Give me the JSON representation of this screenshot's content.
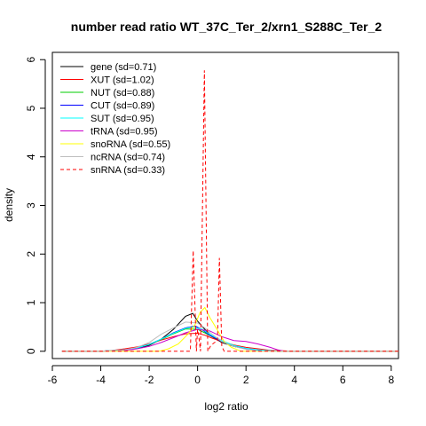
{
  "chart_data": {
    "type": "line",
    "title": "number read ratio WT_37C_Ter_2/xrn1_S288C_Ter_2",
    "xlabel": "log2 ratio",
    "ylabel": "density",
    "xlim": [
      -6,
      8.3
    ],
    "ylim": [
      -0.15,
      6.15
    ],
    "xticks": [
      -6,
      -4,
      -2,
      0,
      2,
      4,
      6,
      8
    ],
    "yticks": [
      0,
      1,
      2,
      3,
      4,
      5,
      6
    ],
    "grid": false,
    "legend_position": "top-left",
    "series": [
      {
        "name": "gene (sd=0.71)",
        "color": "#000000",
        "dash": false,
        "x": [
          -5.6,
          -4,
          -3.5,
          -3,
          -2.5,
          -2,
          -1.5,
          -1,
          -0.5,
          -0.2,
          0,
          0.3,
          0.6,
          1,
          1.5,
          2,
          2.5,
          3,
          3.5,
          4,
          8.3
        ],
        "y": [
          0,
          0,
          0.01,
          0.03,
          0.06,
          0.12,
          0.25,
          0.45,
          0.72,
          0.78,
          0.62,
          0.45,
          0.3,
          0.18,
          0.1,
          0.05,
          0.02,
          0.01,
          0.005,
          0,
          0
        ]
      },
      {
        "name": "XUT (sd=1.02)",
        "color": "#ff0000",
        "dash": false,
        "x": [
          -5.6,
          -4,
          -3.5,
          -3,
          -2.5,
          -2,
          -1.5,
          -1,
          -0.5,
          0,
          0.3,
          0.6,
          1,
          1.5,
          2,
          2.5,
          3,
          3.5,
          4,
          8.3
        ],
        "y": [
          0,
          0,
          0.02,
          0.05,
          0.09,
          0.15,
          0.23,
          0.3,
          0.36,
          0.37,
          0.33,
          0.27,
          0.2,
          0.13,
          0.08,
          0.05,
          0.02,
          0.01,
          0,
          0
        ]
      },
      {
        "name": "NUT (sd=0.88)",
        "color": "#00cc00",
        "dash": false,
        "x": [
          -5.6,
          -4,
          -3,
          -2.5,
          -2,
          -1.5,
          -1,
          -0.5,
          0,
          0.3,
          0.6,
          1,
          1.5,
          2,
          2.5,
          3,
          3.5,
          8.3
        ],
        "y": [
          0,
          0,
          0.03,
          0.07,
          0.14,
          0.24,
          0.36,
          0.46,
          0.45,
          0.38,
          0.3,
          0.2,
          0.1,
          0.05,
          0.02,
          0.01,
          0,
          0
        ]
      },
      {
        "name": "CUT (sd=0.89)",
        "color": "#0000ff",
        "dash": false,
        "x": [
          -5.6,
          -4,
          -3,
          -2.5,
          -2,
          -1.5,
          -1,
          -0.5,
          -0.1,
          0.2,
          0.5,
          1,
          1.5,
          2,
          2.5,
          3,
          3.5,
          8.3
        ],
        "y": [
          0,
          0,
          0.03,
          0.07,
          0.14,
          0.25,
          0.38,
          0.48,
          0.52,
          0.44,
          0.33,
          0.2,
          0.1,
          0.05,
          0.02,
          0.01,
          0,
          0
        ]
      },
      {
        "name": "SUT (sd=0.95)",
        "color": "#00ffff",
        "dash": false,
        "x": [
          -5.6,
          -4,
          -3,
          -2.5,
          -2,
          -1.5,
          -1,
          -0.5,
          -0.2,
          0.2,
          0.5,
          1,
          1.5,
          2,
          2.5,
          3,
          3.5,
          8.3
        ],
        "y": [
          0,
          0,
          0.03,
          0.07,
          0.14,
          0.25,
          0.37,
          0.47,
          0.5,
          0.45,
          0.35,
          0.22,
          0.12,
          0.06,
          0.03,
          0.01,
          0,
          0
        ]
      },
      {
        "name": "tRNA (sd=0.95)",
        "color": "#cc00cc",
        "dash": false,
        "x": [
          -5.6,
          -4,
          -3,
          -2.5,
          -2,
          -1.5,
          -1,
          -0.5,
          0,
          0.5,
          1,
          1.5,
          2,
          2.5,
          3,
          3.3,
          3.6,
          8.3
        ],
        "y": [
          0,
          0,
          0.02,
          0.05,
          0.1,
          0.18,
          0.28,
          0.38,
          0.45,
          0.42,
          0.3,
          0.22,
          0.2,
          0.15,
          0.08,
          0.03,
          0,
          0
        ]
      },
      {
        "name": "snoRNA (sd=0.55)",
        "color": "#ffff00",
        "dash": false,
        "x": [
          -5.6,
          -1.6,
          -1.2,
          -0.8,
          -0.4,
          -0.1,
          0.1,
          0.3,
          0.5,
          0.8,
          1.1,
          1.4,
          1.8,
          8.3
        ],
        "y": [
          0,
          0,
          0.05,
          0.15,
          0.35,
          0.55,
          0.8,
          0.9,
          0.7,
          0.45,
          0.2,
          0.08,
          0,
          0
        ]
      },
      {
        "name": "ncRNA (sd=0.74)",
        "color": "#bebebe",
        "dash": false,
        "x": [
          -5.6,
          -4,
          -3,
          -2.5,
          -2,
          -1.5,
          -1,
          -0.5,
          0,
          0.3,
          0.6,
          1,
          1.5,
          2,
          2.5,
          3,
          8.3
        ],
        "y": [
          0,
          0,
          0.03,
          0.08,
          0.18,
          0.35,
          0.48,
          0.6,
          0.58,
          0.48,
          0.35,
          0.2,
          0.1,
          0.04,
          0.01,
          0,
          0
        ]
      },
      {
        "name": "snRNA (sd=0.33)",
        "color": "#ff0000",
        "dash": true,
        "x": [
          -5.6,
          -0.3,
          -0.18,
          -0.05,
          0,
          0.05,
          0.12,
          0.28,
          0.42,
          0.55,
          0.7,
          0.82,
          0.9,
          1.0,
          1.1,
          8.3
        ],
        "y": [
          0,
          0,
          2.07,
          0,
          0.45,
          0.3,
          0,
          5.78,
          0,
          0.12,
          0.18,
          0.2,
          1.92,
          0.1,
          0,
          0
        ]
      }
    ]
  }
}
